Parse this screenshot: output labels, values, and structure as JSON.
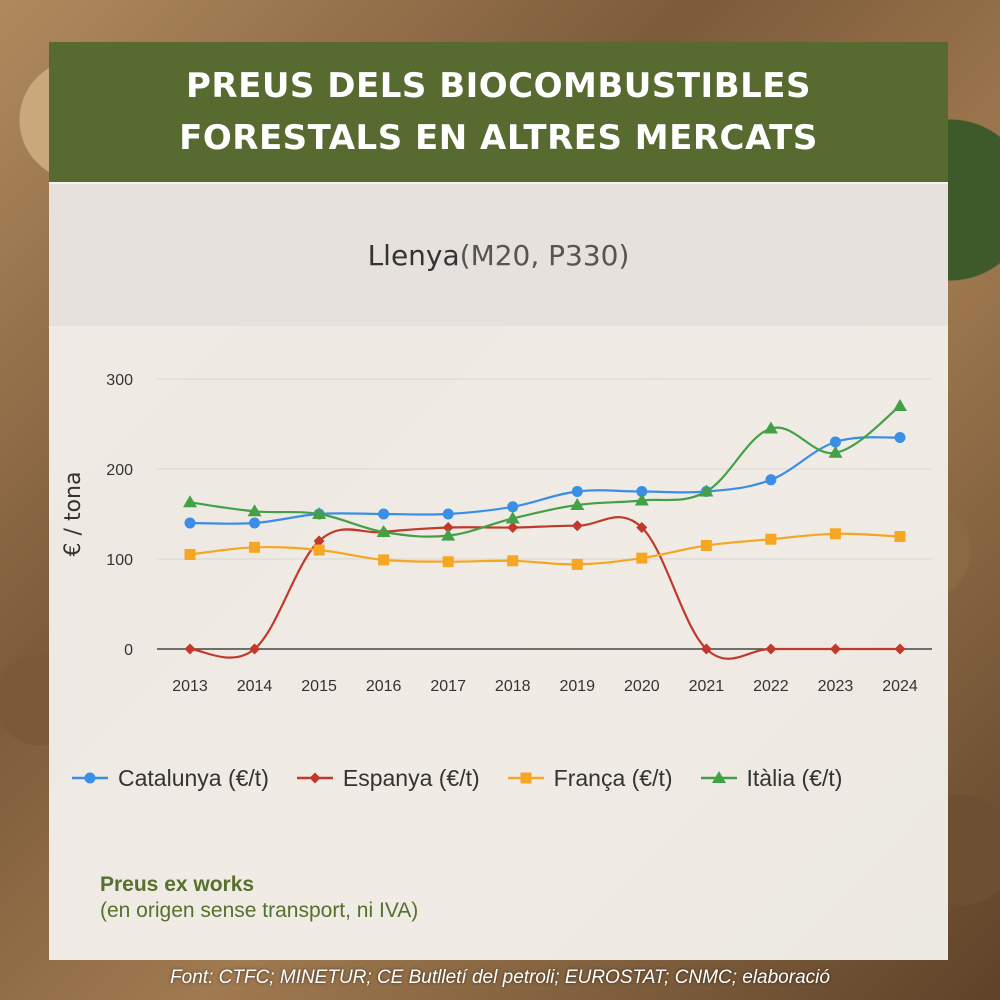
{
  "header": {
    "line1": "PREUS DELS BIOCOMBUSTIBLES",
    "line2": "FORESTALS EN ALTRES MERCATS"
  },
  "subtitle": {
    "main": "Llenya",
    "detail": " (M20, P330)"
  },
  "note": {
    "title": "Preus ex works",
    "text": "(en origen sense transport, ni IVA)"
  },
  "footer": "Font: CTFC; MINETUR; CE Butlletí del petroli; EUROSTAT; CNMC; elaboració",
  "colors": {
    "header_bg": "#576b31",
    "catalunya": "#3a8ee6",
    "espanya": "#c0392b",
    "franca": "#f5a623",
    "italia": "#43a047",
    "note": "#57702e"
  },
  "chart_data": {
    "type": "line",
    "title": "Llenya (M20, P330)",
    "ylabel": "€ / tona",
    "xlabel": "",
    "ylim": [
      0,
      300
    ],
    "yticks": [
      0,
      100,
      200,
      300
    ],
    "grid": true,
    "legend_position": "bottom",
    "categories": [
      "2013",
      "2014",
      "2015",
      "2016",
      "2017",
      "2018",
      "2019",
      "2020",
      "2021",
      "2022",
      "2023",
      "2024"
    ],
    "series": [
      {
        "name": "Catalunya (€/t)",
        "marker": "circle",
        "color": "#3a8ee6",
        "values": [
          140,
          140,
          150,
          150,
          150,
          158,
          175,
          175,
          175,
          188,
          230,
          235
        ]
      },
      {
        "name": "Espanya (€/t)",
        "marker": "diamond",
        "color": "#c0392b",
        "values": [
          0,
          0,
          120,
          130,
          135,
          135,
          137,
          135,
          0,
          0,
          0,
          0
        ]
      },
      {
        "name": "França (€/t)",
        "marker": "square",
        "color": "#f5a623",
        "values": [
          105,
          113,
          110,
          99,
          97,
          98,
          94,
          101,
          115,
          122,
          128,
          125
        ]
      },
      {
        "name": "Itàlia (€/t)",
        "marker": "triangle",
        "color": "#43a047",
        "values": [
          163,
          153,
          150,
          130,
          126,
          145,
          160,
          165,
          175,
          245,
          218,
          270
        ]
      }
    ]
  }
}
